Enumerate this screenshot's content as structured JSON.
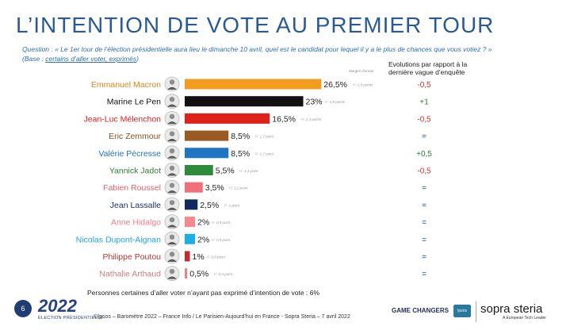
{
  "title": "L’INTENTION DE VOTE AU PREMIER TOUR",
  "question_line1": "Question : « Le 1er tour de l’élection présidentielle aura lieu le dimanche 10 avril, quel est le candidat pour lequel il y a le plus de chances que vous votiez ? »",
  "question_base_prefix": "(Base : ",
  "question_base_link": "certains d’aller voter, exprimés",
  "question_base_suffix": ")",
  "evolution_header": "Evolutions par rapport à la dernière vague d’enquête",
  "margin_header": "Marges d’erreur",
  "note": "Personnes certaines d’aller voter n’ayant pas exprimé d’intention de vote : 6%",
  "page_number": "6",
  "logo_text": "2022",
  "logo_subtitle": "ÉLECTION PRÉSIDENTIELLE",
  "source": "©Ipsos – Baromètre 2022 – France Info / Le Parisien-Aujourd’hui en France - Sopra Steria – 7 avril 2022",
  "game_changers": "GAME CHANGERS",
  "ipsos_logo": "Ipsos",
  "sopra_logo": "sopra steria",
  "sopra_tagline": "A European Tech Leader",
  "chart_data": {
    "type": "bar",
    "orientation": "horizontal",
    "categories": [
      "Emmanuel Macron",
      "Marine Le Pen",
      "Jean-Luc Mélenchon",
      "Eric Zemmour",
      "Valérie Pécresse",
      "Yannick Jadot",
      "Fabien Roussel",
      "Jean Lassalle",
      "Anne Hidalgo",
      "Nicolas Dupont-Aignan",
      "Philippe Poutou",
      "Nathalie Arthaud"
    ],
    "values": [
      26.5,
      23,
      16.5,
      8.5,
      8.5,
      5.5,
      3.5,
      2.5,
      2,
      2,
      1,
      0.5
    ],
    "value_labels": [
      "26,5%",
      "23%",
      "16,5%",
      "8,5%",
      "8,5%",
      "5,5%",
      "3,5%",
      "2,5%",
      "2%",
      "2%",
      "1%",
      "0,5%"
    ],
    "margins": [
      "+/- 2,9 points",
      "+/- 2,6 points",
      "+/- 2,3 points",
      "+/- 1,7 point",
      "+/- 1,7 point",
      "+/- 1,4 point",
      "+/- 1,2 point",
      "+/- 1 point",
      "+/- 0,9 point",
      "+/- 0,9 point",
      "+/- 0,6 point",
      "+/- 0,4 point"
    ],
    "evolutions": [
      "-0,5",
      "+1",
      "-0,5",
      "=",
      "+0,5",
      "-0,5",
      "=",
      "=",
      "=",
      "=",
      "=",
      "="
    ],
    "colors": [
      "#f39c1f",
      "#111111",
      "#e0201b",
      "#9a5a22",
      "#1f75c1",
      "#2e8b3c",
      "#f06f7a",
      "#102a5e",
      "#f7888f",
      "#1eaee6",
      "#c62b2b",
      "#d98a8a"
    ],
    "label_colors": [
      "#d9861a",
      "#111111",
      "#d91e1e",
      "#8a5020",
      "#1f70b8",
      "#2e7d32",
      "#e2606c",
      "#1a2f63",
      "#f07d86",
      "#1ea6df",
      "#c0302e",
      "#c88080"
    ],
    "evolution_colors": [
      "#d32f2f",
      "#2e7d32",
      "#d32f2f",
      "#1f3d72",
      "#2e7d32",
      "#d32f2f",
      "#1f3d72",
      "#1f3d72",
      "#1f3d72",
      "#1f3d72",
      "#1f3d72",
      "#1f3d72"
    ]
  }
}
